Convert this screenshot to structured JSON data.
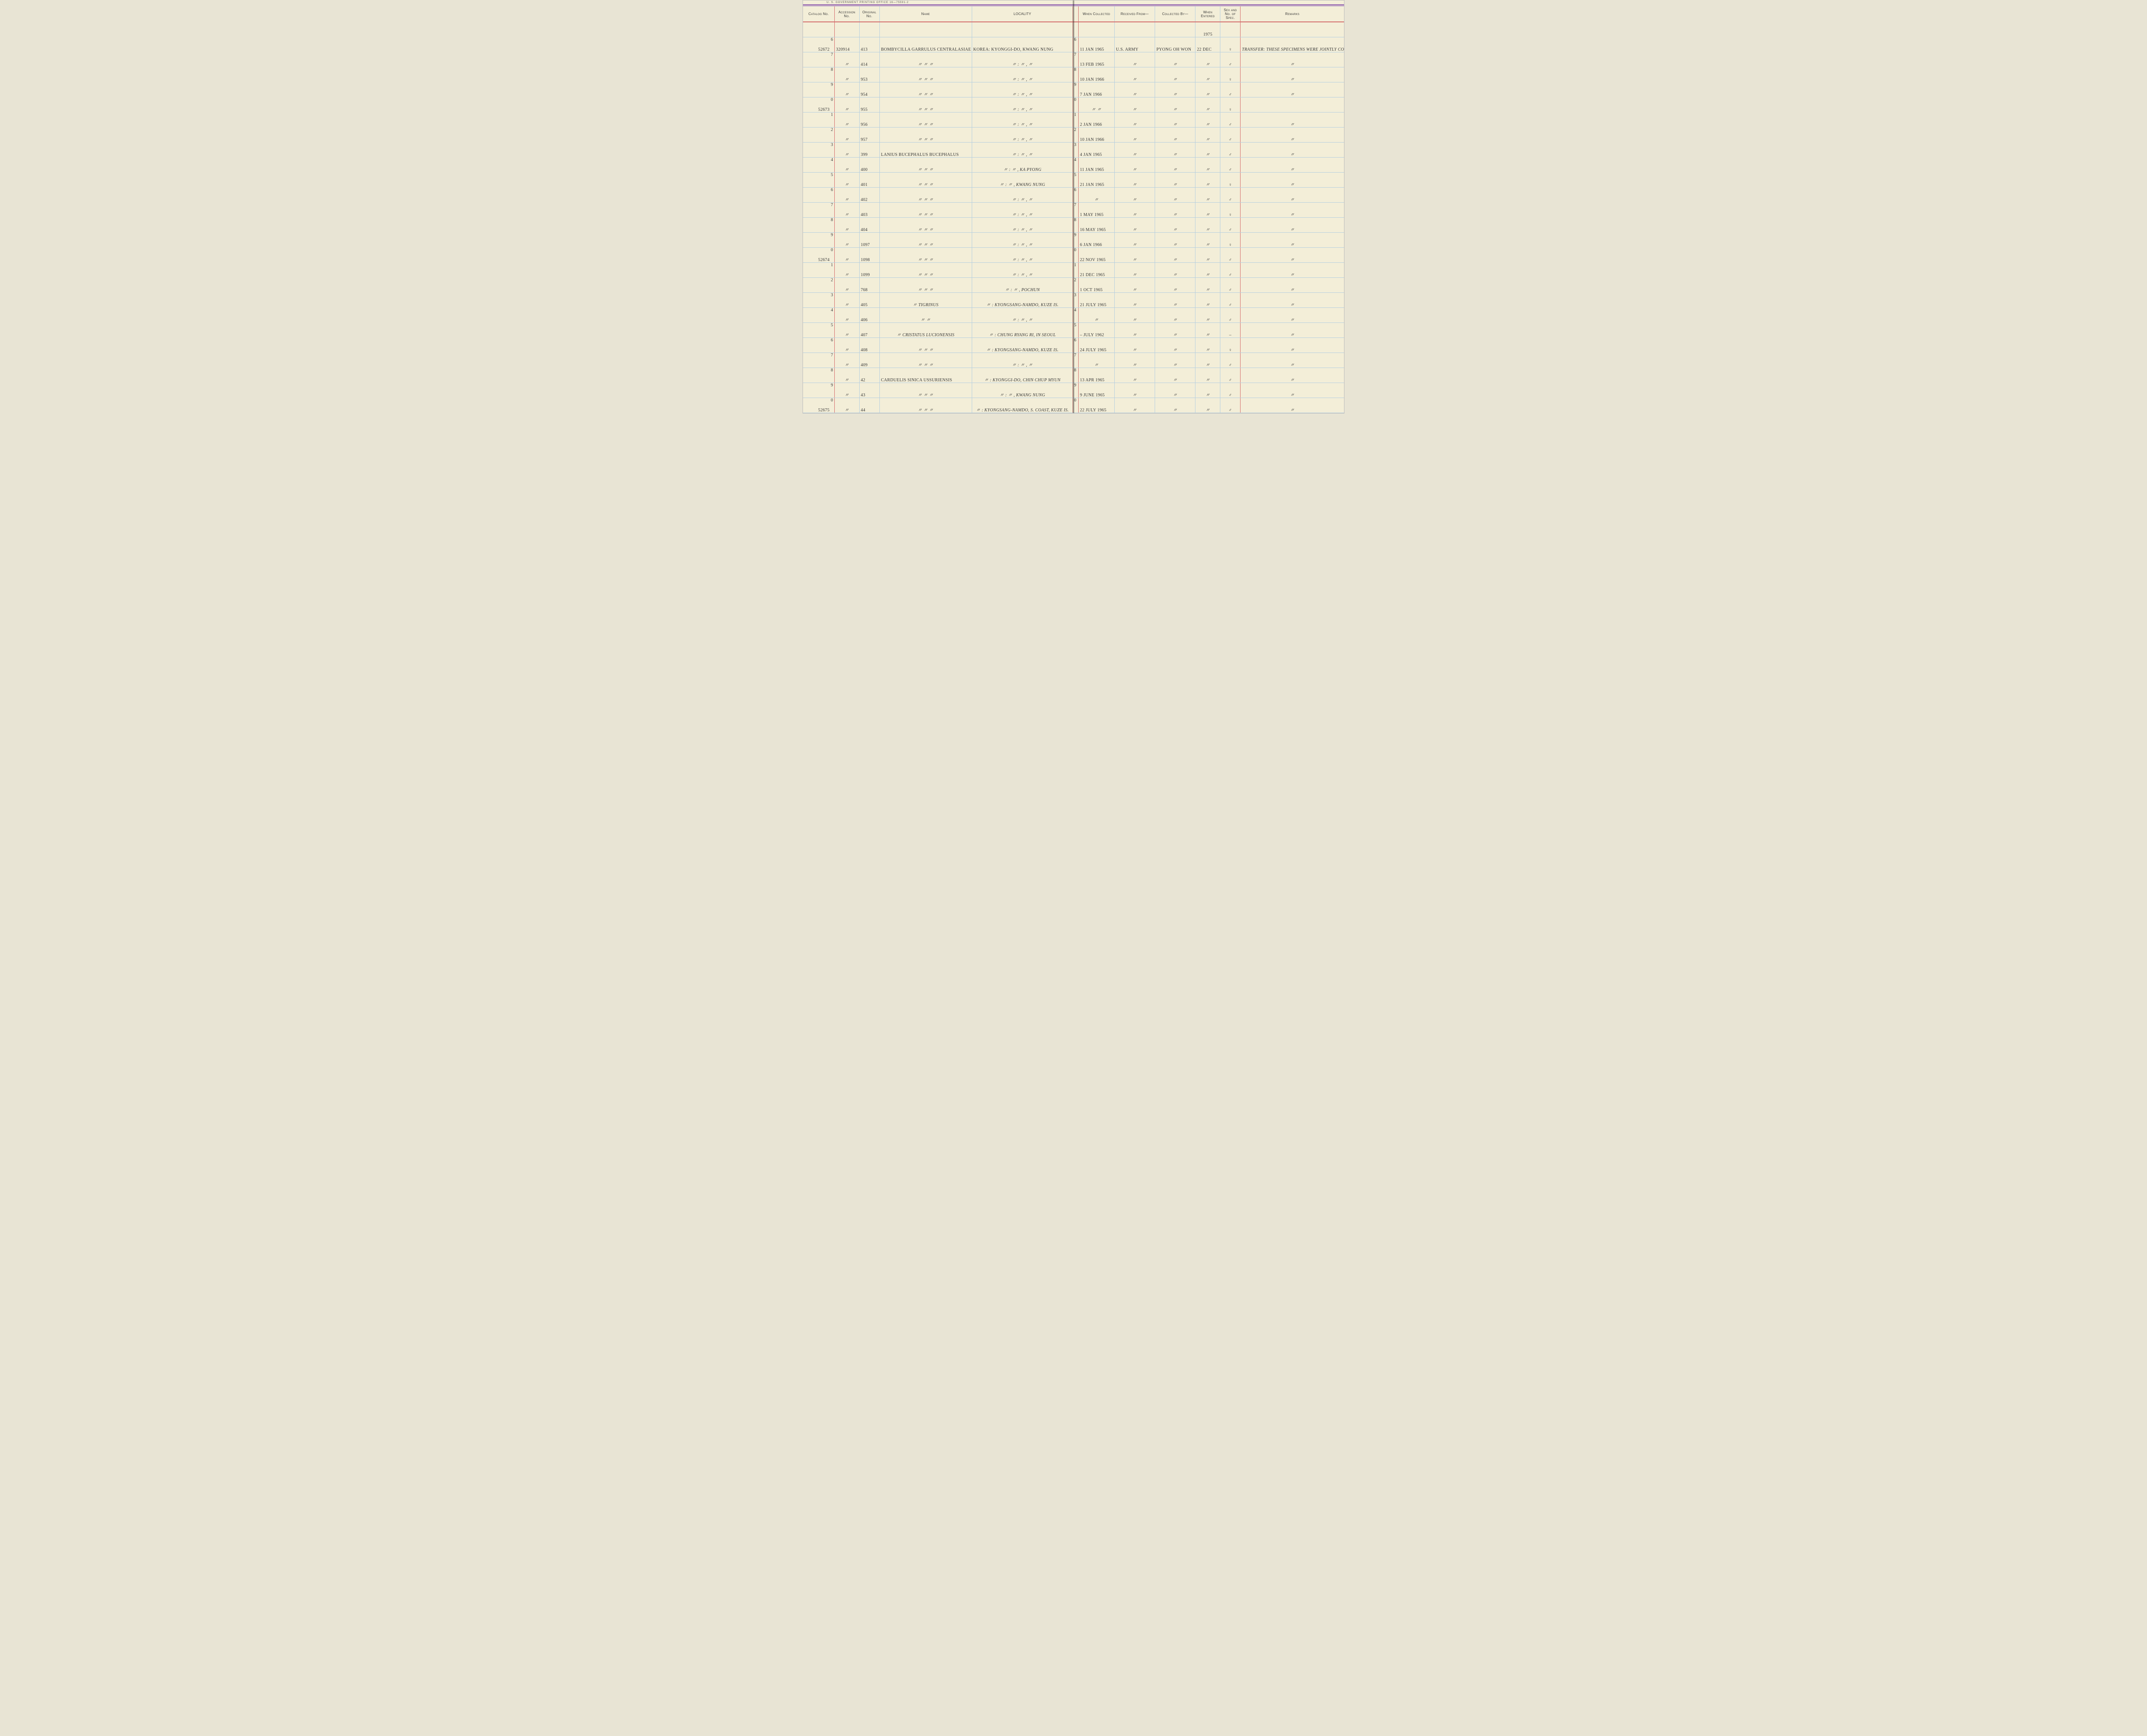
{
  "printer_line": "U. S. Government Printing Office   16—75591-2",
  "year_note": "1975",
  "headers": {
    "catalog": "Catalog No.",
    "accession": "Accession No.",
    "original": "Original No.",
    "name": "Name",
    "locality": "LOCALITY",
    "when_collected": "When Collected",
    "received_from": "Received From—",
    "collected_by": "Collected By—",
    "when_entered": "When Entered",
    "sex": "Sex and No. of Spec.",
    "remarks": "Remarks"
  },
  "col_widths": {
    "catalog": 60,
    "rownum_l": 10,
    "accession": 55,
    "original": 45,
    "name": 205,
    "locality": 225,
    "rownum_r": 12,
    "when_collected": 80,
    "received_from": 90,
    "collected_by": 90,
    "when_entered": 55,
    "sex": 45,
    "remarks": 230
  },
  "rows": [
    {
      "n": "6",
      "catalog": "52672",
      "accession": "320914",
      "original": "413",
      "name": "Bombycilla garrulus centralasiae",
      "locality": "Korea: Kyonggi-do, Kwang Nung",
      "when_collected": "11 Jan 1965",
      "received_from": "U.S. Army",
      "collected_by": "Pyong Oh Won",
      "when_entered": "22 Dec",
      "sex": "♀",
      "remarks": "Transfer: These specimens were jointly collected by U.S. Army in co-operation with Pyong Oh Won"
    },
    {
      "n": "7",
      "catalog": "",
      "accession": "〃",
      "original": "414",
      "name": "〃   〃   〃",
      "locality": "〃   :   〃   ,   〃",
      "when_collected": "13 Feb 1965",
      "received_from": "〃",
      "collected_by": "〃",
      "when_entered": "〃",
      "sex": "♂",
      "remarks": "〃"
    },
    {
      "n": "8",
      "catalog": "",
      "accession": "〃",
      "original": "953",
      "name": "〃   〃   〃",
      "locality": "〃   :   〃   ,   〃",
      "when_collected": "10 Jan 1966",
      "received_from": "〃",
      "collected_by": "〃",
      "when_entered": "〃",
      "sex": "♀",
      "remarks": "〃"
    },
    {
      "n": "9",
      "catalog": "",
      "accession": "〃",
      "original": "954",
      "name": "〃   〃   〃",
      "locality": "〃   :   〃   ,   〃",
      "when_collected": "7 Jan 1966",
      "received_from": "〃",
      "collected_by": "〃",
      "when_entered": "〃",
      "sex": "♂",
      "remarks": "〃"
    },
    {
      "n": "0",
      "catalog": "52673",
      "accession": "〃",
      "original": "955",
      "name": "〃   〃   〃",
      "locality": "〃   :   〃   ,   〃",
      "when_collected": "〃   〃",
      "received_from": "〃",
      "collected_by": "〃",
      "when_entered": "〃",
      "sex": "♀",
      "remarks": ""
    },
    {
      "n": "1",
      "catalog": "",
      "accession": "〃",
      "original": "956",
      "name": "〃   〃   〃",
      "locality": "〃   :   〃   ,   〃",
      "when_collected": "2 Jan 1966",
      "received_from": "〃",
      "collected_by": "〃",
      "when_entered": "〃",
      "sex": "♂",
      "remarks": "〃"
    },
    {
      "n": "2",
      "catalog": "",
      "accession": "〃",
      "original": "957",
      "name": "〃   〃   〃",
      "locality": "〃   :   〃   ,   〃",
      "when_collected": "10 Jan 1966",
      "received_from": "〃",
      "collected_by": "〃",
      "when_entered": "〃",
      "sex": "♂",
      "remarks": "〃"
    },
    {
      "n": "3",
      "catalog": "",
      "accession": "〃",
      "original": "399",
      "name": "Lanius bucephalus bucephalus",
      "locality": "〃   :   〃   ,   〃",
      "when_collected": "4 Jan 1965",
      "received_from": "〃",
      "collected_by": "〃",
      "when_entered": "〃",
      "sex": "♂",
      "remarks": "〃"
    },
    {
      "n": "4",
      "catalog": "",
      "accession": "〃",
      "original": "400",
      "name": "〃   〃   〃",
      "locality": "〃   :   〃   ,   Ka Pyong",
      "when_collected": "11 Jan 1965",
      "received_from": "〃",
      "collected_by": "〃",
      "when_entered": "〃",
      "sex": "♂",
      "remarks": "〃"
    },
    {
      "n": "5",
      "catalog": "",
      "accession": "〃",
      "original": "401",
      "name": "〃   〃   〃",
      "locality": "〃   :   〃   ,   Kwang Nung",
      "when_collected": "21 Jan 1965",
      "received_from": "〃",
      "collected_by": "〃",
      "when_entered": "〃",
      "sex": "♀",
      "remarks": "〃"
    },
    {
      "n": "6",
      "catalog": "",
      "accession": "〃",
      "original": "402",
      "name": "〃   〃   〃",
      "locality": "〃   :   〃   ,   〃",
      "when_collected": "〃",
      "received_from": "〃",
      "collected_by": "〃",
      "when_entered": "〃",
      "sex": "♂",
      "remarks": "〃"
    },
    {
      "n": "7",
      "catalog": "",
      "accession": "〃",
      "original": "403",
      "name": "〃   〃   〃",
      "locality": "〃   :   〃   ,   〃",
      "when_collected": "1 May 1965",
      "received_from": "〃",
      "collected_by": "〃",
      "when_entered": "〃",
      "sex": "♀",
      "remarks": "〃"
    },
    {
      "n": "8",
      "catalog": "",
      "accession": "〃",
      "original": "404",
      "name": "〃   〃   〃",
      "locality": "〃   :   〃   ,   〃",
      "when_collected": "16 May 1965",
      "received_from": "〃",
      "collected_by": "〃",
      "when_entered": "〃",
      "sex": "♂",
      "remarks": "〃"
    },
    {
      "n": "9",
      "catalog": "",
      "accession": "〃",
      "original": "1097",
      "name": "〃   〃   〃",
      "locality": "〃   :   〃   ,   〃",
      "when_collected": "6 Jan 1966",
      "received_from": "〃",
      "collected_by": "〃",
      "when_entered": "〃",
      "sex": "♀",
      "remarks": "〃"
    },
    {
      "n": "0",
      "catalog": "52674",
      "accession": "〃",
      "original": "1098",
      "name": "〃   〃   〃",
      "locality": "〃   :   〃   ,   〃",
      "when_collected": "22 Nov 1965",
      "received_from": "〃",
      "collected_by": "〃",
      "when_entered": "〃",
      "sex": "♂",
      "remarks": "〃"
    },
    {
      "n": "1",
      "catalog": "",
      "accession": "〃",
      "original": "1099",
      "name": "〃   〃   〃",
      "locality": "〃   :   〃   ,   〃",
      "when_collected": "21 Dec 1965",
      "received_from": "〃",
      "collected_by": "〃",
      "when_entered": "〃",
      "sex": "♂",
      "remarks": "〃"
    },
    {
      "n": "2",
      "catalog": "",
      "accession": "〃",
      "original": "768",
      "name": "〃   〃   〃",
      "locality": "〃   :   〃   ,   Pochun",
      "when_collected": "1 Oct 1965",
      "received_from": "〃",
      "collected_by": "〃",
      "when_entered": "〃",
      "sex": "♂",
      "remarks": "〃"
    },
    {
      "n": "3",
      "catalog": "",
      "accession": "〃",
      "original": "405",
      "name": "〃   tigrinus",
      "locality": "〃   :   Kyongsang-Namdo, Kuze Is.",
      "when_collected": "21 July 1965",
      "received_from": "〃",
      "collected_by": "〃",
      "when_entered": "〃",
      "sex": "♂",
      "remarks": "〃"
    },
    {
      "n": "4",
      "catalog": "",
      "accession": "〃",
      "original": "406",
      "name": "〃   〃",
      "locality": "〃   :   〃   ,   〃",
      "when_collected": "〃",
      "received_from": "〃",
      "collected_by": "〃",
      "when_entered": "〃",
      "sex": "♂",
      "remarks": "〃"
    },
    {
      "n": "5",
      "catalog": "",
      "accession": "〃",
      "original": "407",
      "name": "〃   cristatus lucionensis",
      "locality": "〃   :   Chung Ryang Ri, in Seoul",
      "when_collected": "– July 1962",
      "received_from": "〃",
      "collected_by": "〃",
      "when_entered": "〃",
      "sex": "–",
      "remarks": "〃"
    },
    {
      "n": "6",
      "catalog": "",
      "accession": "〃",
      "original": "408",
      "name": "〃   〃   〃",
      "locality": "〃   :   Kyongsang-Namdo, Kuze Is.",
      "when_collected": "24 July 1965",
      "received_from": "〃",
      "collected_by": "〃",
      "when_entered": "〃",
      "sex": "♀",
      "remarks": "〃"
    },
    {
      "n": "7",
      "catalog": "",
      "accession": "〃",
      "original": "409",
      "name": "〃   〃   〃",
      "locality": "〃   :   〃   ,   〃",
      "when_collected": "〃",
      "received_from": "〃",
      "collected_by": "〃",
      "when_entered": "〃",
      "sex": "♂",
      "remarks": "〃"
    },
    {
      "n": "8",
      "catalog": "",
      "accession": "〃",
      "original": "42",
      "name": "Carduelis sinica ussuriensis",
      "locality": "〃   :   Kyonggi-do, Chin Chup Myun",
      "when_collected": "13 Apr 1965",
      "received_from": "〃",
      "collected_by": "〃",
      "when_entered": "〃",
      "sex": "♂",
      "remarks": "〃"
    },
    {
      "n": "9",
      "catalog": "",
      "accession": "〃",
      "original": "43",
      "name": "〃   〃   〃",
      "locality": "〃   :   〃   ,   Kwang Nung",
      "when_collected": "9 June 1965",
      "received_from": "〃",
      "collected_by": "〃",
      "when_entered": "〃",
      "sex": "♂",
      "remarks": "〃"
    },
    {
      "n": "0",
      "catalog": "52675",
      "accession": "〃",
      "original": "44",
      "name": "〃   〃   〃",
      "locality": "〃   :   Kyongsang-Namdo, S. Coast, Kuze Is.",
      "when_collected": "22 July 1965",
      "received_from": "〃",
      "collected_by": "〃",
      "when_entered": "〃",
      "sex": "♂",
      "remarks": "〃"
    }
  ]
}
